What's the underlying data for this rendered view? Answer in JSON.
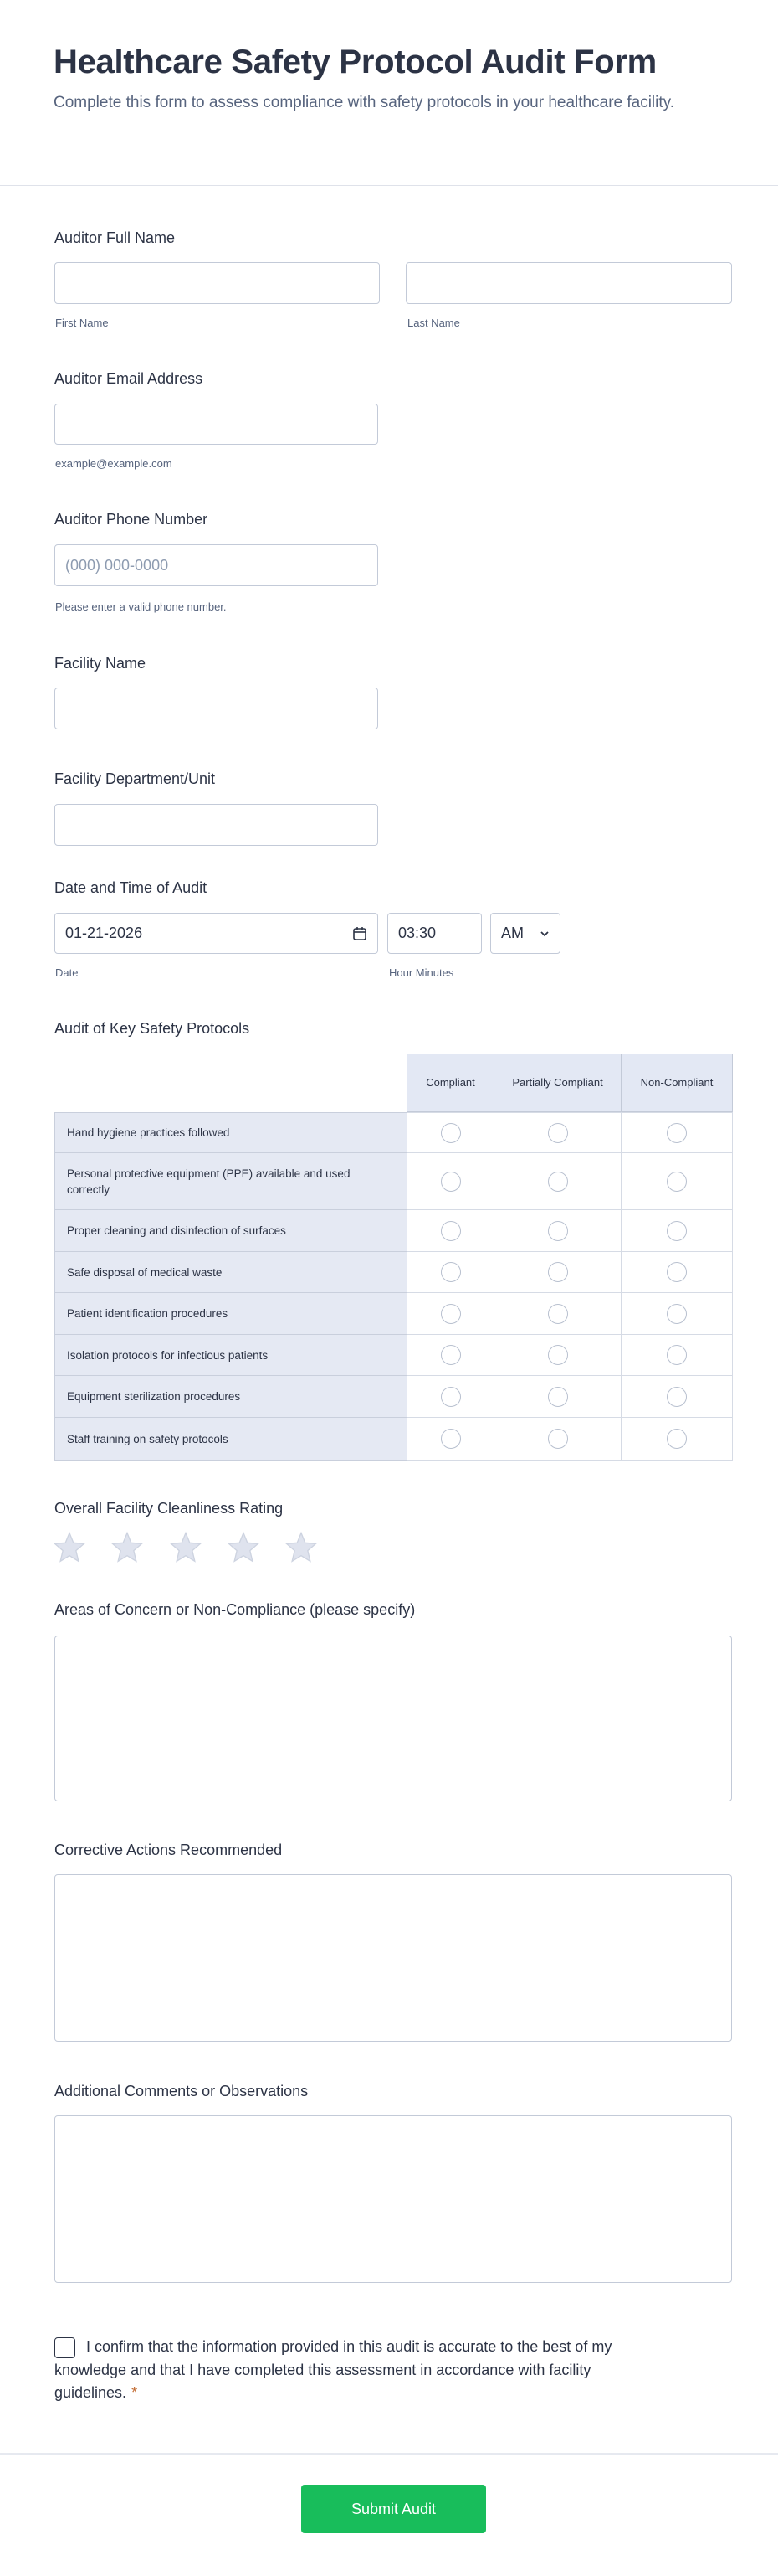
{
  "header": {
    "title": "Healthcare Safety Protocol Audit Form",
    "subtitle": "Complete this form to assess compliance with safety protocols in your healthcare facility."
  },
  "fields": {
    "full_name": {
      "label": "Auditor Full Name",
      "first_sub": "First Name",
      "last_sub": "Last Name",
      "first_value": "",
      "last_value": ""
    },
    "email": {
      "label": "Auditor Email Address",
      "value": "",
      "helper": "example@example.com"
    },
    "phone": {
      "label": "Auditor Phone Number",
      "value": "",
      "placeholder": "(000) 000-0000",
      "helper": "Please enter a valid phone number."
    },
    "facility": {
      "label": "Facility Name",
      "value": ""
    },
    "department": {
      "label": "Facility Department/Unit",
      "value": ""
    },
    "datetime": {
      "label": "Date and Time of Audit",
      "date": "01-21-2026",
      "time": "03:30",
      "ampm": "AM",
      "date_sub": "Date",
      "time_sub": "Hour Minutes"
    }
  },
  "matrix": {
    "label": "Audit of Key Safety Protocols",
    "columns": [
      "Compliant",
      "Partially Compliant",
      "Non-Compliant"
    ],
    "rows": [
      "Hand hygiene practices followed",
      "Personal protective equipment (PPE) available and used correctly",
      "Proper cleaning and disinfection of surfaces",
      "Safe disposal of medical waste",
      "Patient identification procedures",
      "Isolation protocols for infectious patients",
      "Equipment sterilization procedures",
      "Staff training on safety protocols"
    ]
  },
  "rating": {
    "label": "Overall Facility Cleanliness Rating",
    "max": 5,
    "value": 0,
    "star_color": "#dfe3ee"
  },
  "textareas": {
    "concerns": {
      "label": "Areas of Concern or Non-Compliance (please specify)",
      "value": ""
    },
    "actions": {
      "label": "Corrective Actions Recommended",
      "value": ""
    },
    "comments": {
      "label": "Additional Comments or Observations",
      "value": ""
    }
  },
  "confirmation": {
    "text": "I confirm that the information provided in this audit is accurate to the best of my knowledge and that I have completed this assessment in accordance with facility guidelines.",
    "required_mark": "*",
    "checked": false
  },
  "submit": {
    "label": "Submit Audit",
    "color": "#18bd5b"
  }
}
